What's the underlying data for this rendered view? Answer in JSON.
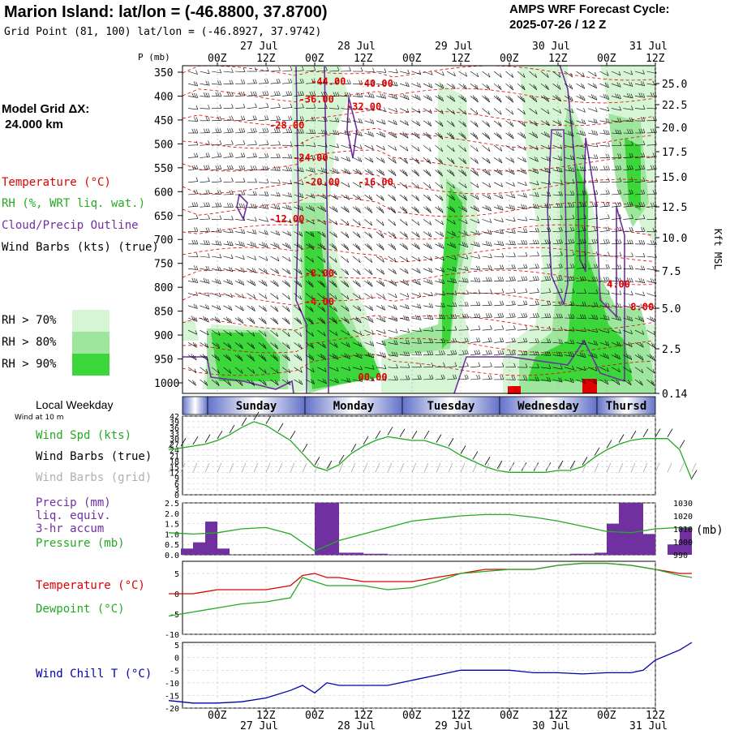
{
  "header": {
    "title": "Marion Island:  lat/lon = (-46.8800, 37.8700)",
    "grid_point": "Grid Point (81, 100) lat/lon = (-46.8927, 37.9742)",
    "cycle_title": "AMPS WRF Forecast Cycle:",
    "cycle_value": "2025-07-26 / 12  Z"
  },
  "time_axis": {
    "top_dates": [
      "27 Jul",
      "28 Jul",
      "29 Jul",
      "30 Jul",
      "31 Jul"
    ],
    "hour_labels": [
      "00Z",
      "12Z",
      "00Z",
      "12Z",
      "00Z",
      "12Z",
      "00Z",
      "12Z",
      "00Z",
      "12Z"
    ],
    "hours_since_start": [
      12,
      24,
      36,
      48,
      60,
      72,
      84,
      96,
      108,
      120
    ]
  },
  "left_legend": {
    "model_grid_title": "Model Grid ΔX:",
    "model_grid_value": " 24.000 km",
    "temperature": "Temperature (°C)",
    "rh": "RH (%, WRT liq. wat.)",
    "cloud": "Cloud/Precip Outline",
    "wind_barbs": "Wind Barbs (kts) (true)",
    "rh70": "RH > 70%",
    "rh80": "RH > 80%",
    "rh90": "RH > 90%",
    "rh_colors": [
      "#d5f5d5",
      "#9ee69e",
      "#3ad63a"
    ],
    "temp_color": "#e00000",
    "cloud_color": "#7030a0"
  },
  "weekday": {
    "label": "Local Weekday",
    "days": [
      "Sunday",
      "Monday",
      "Tuesday",
      "Wednesday",
      "Thursd"
    ],
    "wind_at": "Wind at 10 m"
  },
  "panel_labels": {
    "wind_spd": "Wind Spd (kts)",
    "wind_barbs_true": "Wind Barbs (true)",
    "wind_barbs_grid": "Wind Barbs (grid)",
    "precip1": "Precip (mm)",
    "precip2": "liq. equiv.",
    "precip3": "3-hr accum",
    "pressure": "Pressure (mb)",
    "pressure_unit": "(mb)",
    "temperature": "Temperature (°C)",
    "dewpoint": "Dewpoint (°C)",
    "wind_chill": "Wind Chill T (°C)",
    "kft": "Kft MSL"
  },
  "chart_data": [
    {
      "type": "heatmap",
      "name": "time-height cross section",
      "pressure_levels": [
        "350",
        "400",
        "450",
        "500",
        "550",
        "600",
        "650",
        "700",
        "750",
        "800",
        "850",
        "900",
        "950",
        "1000"
      ],
      "height_labels": [
        "25.0",
        "22.5",
        "20.0",
        "17.5",
        "15.0",
        "12.5",
        "10.0",
        "7.5",
        "5.0",
        "2.5",
        "0.14"
      ],
      "temperature_labels": [
        {
          "text": "-44.00",
          "h": 47,
          "p": 372
        },
        {
          "text": "-40.00",
          "h": 55,
          "p": 376
        },
        {
          "text": "-36.00",
          "h": 45,
          "p": 408
        },
        {
          "text": "-32.00",
          "h": 53,
          "p": 423
        },
        {
          "text": "-28.00",
          "h": 40,
          "p": 461
        },
        {
          "text": "-24.00",
          "h": 44,
          "p": 527
        },
        {
          "text": "-20.00",
          "h": 46,
          "p": 577
        },
        {
          "text": "-16.00",
          "h": 55,
          "p": 577
        },
        {
          "text": "-12.00",
          "h": 40,
          "p": 652
        },
        {
          "text": "-8.00",
          "h": 46,
          "p": 763
        },
        {
          "text": "-4.00",
          "h": 46,
          "p": 821
        },
        {
          "text": "4.00",
          "h": 97,
          "p": 786
        },
        {
          "text": "8.00",
          "h": 101,
          "p": 832
        },
        {
          "text": "00.00",
          "h": 55,
          "p": 975
        }
      ]
    },
    {
      "type": "line",
      "name": "Wind Spd",
      "yticks": [
        0,
        3,
        6,
        9,
        12,
        15,
        18,
        21,
        24,
        27,
        30,
        33,
        36,
        39,
        42
      ],
      "ylim": [
        0,
        42
      ],
      "x_hours": [
        0,
        3,
        6,
        9,
        12,
        15,
        18,
        21,
        24,
        27,
        30,
        33,
        36,
        39,
        42,
        45,
        48,
        51,
        54,
        57,
        60,
        63,
        66,
        69,
        72,
        75,
        78,
        81,
        84,
        87,
        90,
        93,
        96,
        99,
        102,
        105,
        108,
        111,
        114,
        117,
        120,
        123,
        126,
        129
      ],
      "values": [
        24,
        25,
        26,
        27,
        29,
        32,
        36,
        39,
        37,
        33,
        29,
        22,
        15,
        13,
        16,
        22,
        26,
        29,
        31,
        30,
        29,
        29,
        27,
        25,
        21,
        18,
        15,
        13,
        12,
        12,
        12,
        12,
        13,
        13,
        15,
        20,
        24,
        27,
        29,
        30,
        30,
        30,
        24,
        8
      ],
      "color": "#22aa22"
    },
    {
      "type": "bar",
      "name": "Precip",
      "yticks": [
        0.0,
        0.5,
        1.0,
        1.5,
        2.0,
        2.5
      ],
      "ylim": [
        0,
        2.5
      ],
      "x_hours": [
        0,
        3,
        6,
        9,
        12,
        15,
        18,
        21,
        24,
        27,
        30,
        33,
        36,
        39,
        42,
        45,
        48,
        51,
        54,
        57,
        60,
        63,
        66,
        69,
        72,
        75,
        78,
        81,
        84,
        87,
        90,
        93,
        96,
        99,
        102,
        105,
        108,
        111,
        114,
        117,
        120,
        123,
        126,
        129
      ],
      "values": [
        0,
        0.3,
        0.6,
        1.6,
        0.3,
        0,
        0,
        0,
        0,
        0,
        0,
        0,
        2.5,
        2.5,
        0.1,
        0.1,
        0.05,
        0.05,
        0.02,
        0,
        0,
        0,
        0,
        0,
        0,
        0,
        0,
        0,
        0,
        0,
        0,
        0,
        0,
        0.05,
        0.05,
        0.1,
        1.5,
        2.5,
        2.5,
        1.0,
        0,
        0.5,
        1.3,
        0
      ],
      "color": "#7030a0"
    },
    {
      "type": "line",
      "name": "Pressure",
      "yticks": [
        990,
        1000,
        1010,
        1020,
        1030
      ],
      "ylim": [
        990,
        1030
      ],
      "x_hours": [
        0,
        6,
        12,
        18,
        24,
        30,
        36,
        42,
        48,
        54,
        60,
        66,
        72,
        78,
        84,
        90,
        96,
        102,
        108,
        114,
        120,
        126,
        129
      ],
      "values": [
        1007,
        1006,
        1007,
        1010,
        1011,
        1006,
        993,
        1001,
        1006,
        1011,
        1016,
        1018,
        1020,
        1021,
        1021,
        1019,
        1016,
        1012,
        1008,
        1007,
        1010,
        1011,
        1011
      ],
      "color": "#22aa22"
    },
    {
      "type": "line",
      "name": "Temperature & Dewpoint",
      "yticks": [
        -10,
        -5,
        0,
        5
      ],
      "ylim": [
        -10,
        8
      ],
      "x_hours": [
        0,
        6,
        12,
        18,
        24,
        30,
        33,
        36,
        39,
        42,
        48,
        54,
        60,
        66,
        72,
        78,
        84,
        90,
        96,
        102,
        108,
        114,
        120,
        126,
        129
      ],
      "series": [
        {
          "name": "Temperature",
          "color": "#dd0000",
          "values": [
            0,
            0,
            1,
            1,
            1,
            2,
            4.5,
            5,
            4,
            4,
            3,
            3,
            3,
            4,
            5,
            6,
            6,
            6,
            7,
            7.5,
            7.5,
            7,
            6,
            5,
            5
          ]
        },
        {
          "name": "Dewpoint",
          "color": "#22aa22",
          "values": [
            -5.5,
            -4.5,
            -3.5,
            -2.5,
            -2,
            -1,
            4,
            3,
            2,
            2,
            2,
            1,
            1.5,
            3,
            5,
            5.5,
            6,
            6,
            7,
            7.5,
            7.5,
            7,
            6,
            4.5,
            4
          ]
        }
      ]
    },
    {
      "type": "line",
      "name": "Wind Chill",
      "yticks": [
        -20,
        -15,
        -10,
        -5,
        0,
        5
      ],
      "ylim": [
        -20,
        6
      ],
      "x_hours": [
        0,
        6,
        12,
        18,
        24,
        30,
        33,
        36,
        39,
        42,
        48,
        54,
        60,
        66,
        72,
        78,
        84,
        90,
        96,
        102,
        108,
        114,
        117,
        120,
        126,
        129
      ],
      "values": [
        -17,
        -18,
        -18,
        -17.5,
        -16,
        -13,
        -11,
        -14,
        -10,
        -11,
        -11,
        -11,
        -9,
        -7,
        -5,
        -5,
        -5,
        -6,
        -6,
        -6.5,
        -6,
        -6,
        -5,
        -1,
        3,
        6
      ],
      "color": "#0000aa"
    }
  ]
}
